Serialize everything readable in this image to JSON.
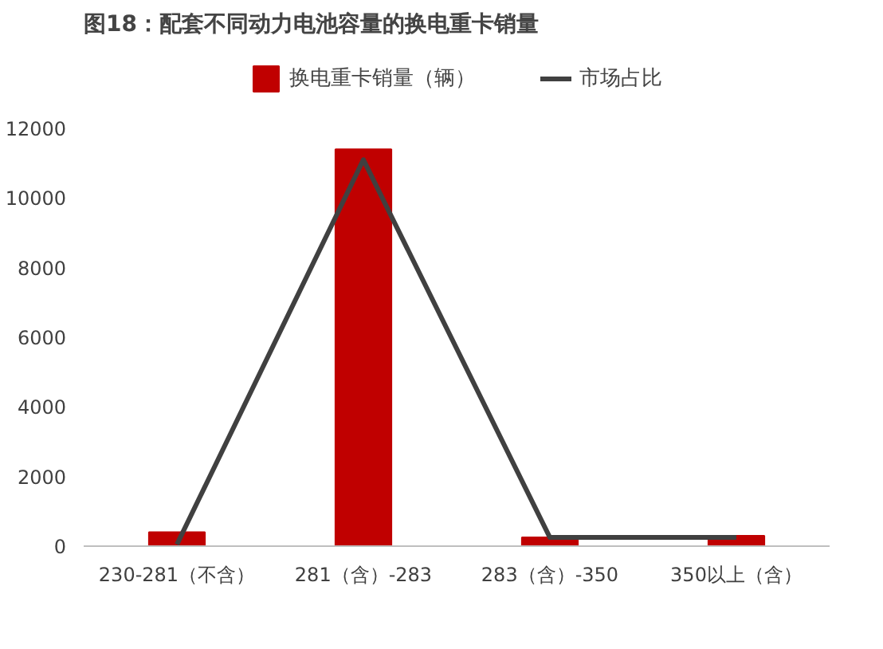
{
  "chart_data": {
    "type": "bar",
    "title": "图18：配套不同动力电池容量的换电重卡销量",
    "categories": [
      "230-281（不含）",
      "281（含）-283",
      "283（含）-350",
      "350以上（含）"
    ],
    "series": [
      {
        "name": "换电重卡销量（辆）",
        "color": "#c00000",
        "values": [
          400,
          11400,
          250,
          300
        ]
      },
      {
        "name": "市场占比",
        "type": "line",
        "color": "#404040",
        "values": [
          50,
          11100,
          250,
          250
        ]
      }
    ],
    "ylim": [
      0,
      12000
    ],
    "yticks": [
      0,
      2000,
      4000,
      6000,
      8000,
      10000,
      12000
    ],
    "grid": false,
    "legend": "top",
    "marker": "none"
  }
}
